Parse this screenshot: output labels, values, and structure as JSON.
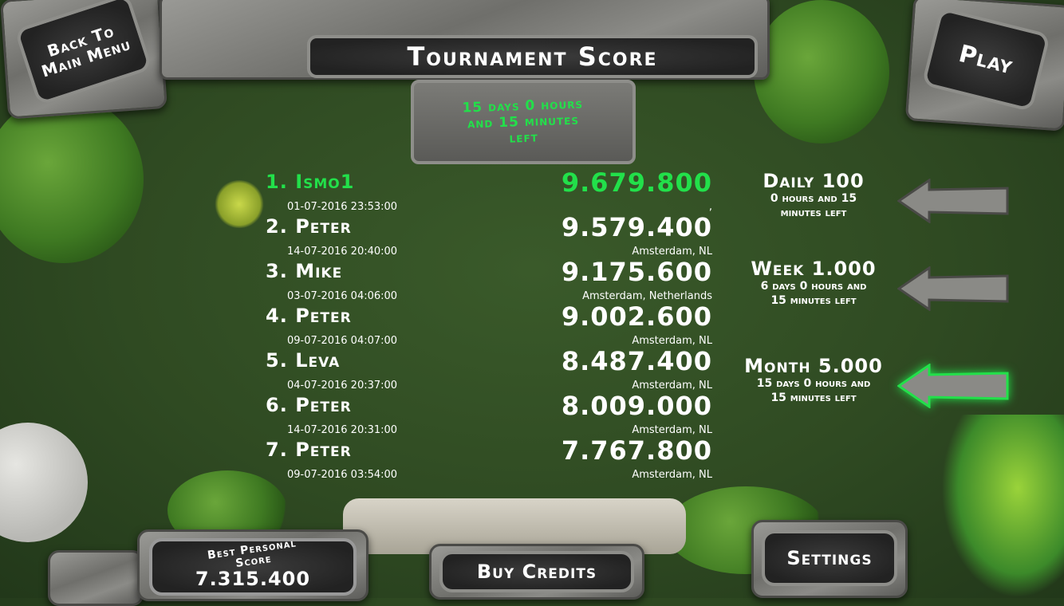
{
  "header": {
    "back_label": "Back To Main Menu",
    "title": "Tournament Score",
    "timer": "15 days 0 hours and 15 minutes left",
    "play_label": "Play"
  },
  "leaderboard": [
    {
      "rank": "1.",
      "name": "Ismo1",
      "score": "9.679.800",
      "date": "01-07-2016  23:53:00",
      "location": ",",
      "highlight": true
    },
    {
      "rank": "2.",
      "name": "Peter",
      "score": "9.579.400",
      "date": "14-07-2016  20:40:00",
      "location": "Amsterdam, NL"
    },
    {
      "rank": "3.",
      "name": "Mike",
      "score": "9.175.600",
      "date": "03-07-2016  04:06:00",
      "location": "Amsterdam, Netherlands"
    },
    {
      "rank": "4.",
      "name": "Peter",
      "score": "9.002.600",
      "date": "09-07-2016  04:07:00",
      "location": "Amsterdam, NL"
    },
    {
      "rank": "5.",
      "name": "Leva",
      "score": "8.487.400",
      "date": "04-07-2016  20:37:00",
      "location": "Amsterdam, NL"
    },
    {
      "rank": "6.",
      "name": "Peter",
      "score": "8.009.000",
      "date": "14-07-2016  20:31:00",
      "location": "Amsterdam, NL"
    },
    {
      "rank": "7.",
      "name": "Peter",
      "score": "7.767.800",
      "date": "09-07-2016  03:54:00",
      "location": "Amsterdam, NL"
    }
  ],
  "prizes": [
    {
      "title": "Daily 100",
      "subtitle": "0 hours and 15 minutes left",
      "selected": false
    },
    {
      "title": "Week 1.000",
      "subtitle": "6 days 0 hours and 15 minutes left",
      "selected": false
    },
    {
      "title": "Month 5.000",
      "subtitle": "15 days 0 hours and 15 minutes left",
      "selected": true
    }
  ],
  "footer": {
    "best_label": "Best Personal Score",
    "best_value": "7.315.400",
    "buy_label": "Buy Credits",
    "settings_label": "Settings"
  },
  "colors": {
    "highlight": "#22e04a",
    "text": "#ffffff",
    "grass": "#2f4a22"
  }
}
